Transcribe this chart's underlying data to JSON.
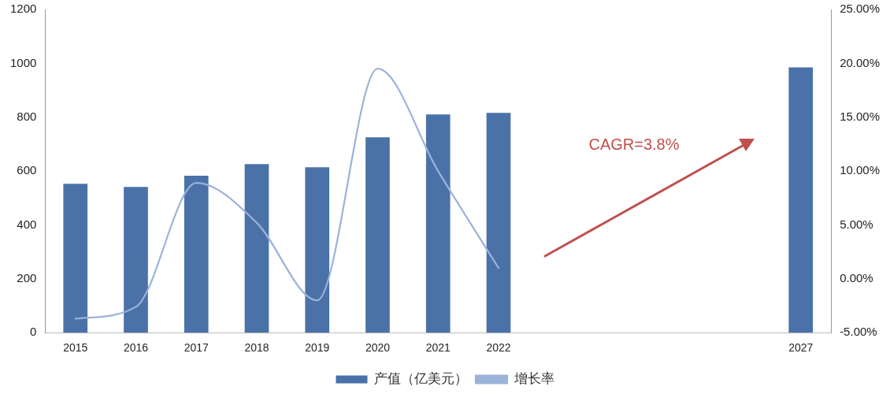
{
  "chart_data": {
    "type": "bar",
    "categories": [
      "2015",
      "2016",
      "2017",
      "2018",
      "2019",
      "2020",
      "2021",
      "2022",
      null,
      null,
      null,
      null,
      "2027"
    ],
    "series": [
      {
        "name": "产值（亿美元）",
        "color": "#4a72a8",
        "values": [
          553,
          541,
          583,
          626,
          614,
          725,
          810,
          816,
          null,
          null,
          null,
          null,
          985
        ]
      },
      {
        "name": "增长率",
        "type": "line",
        "axis": "y2",
        "color": "#9bb3d8",
        "values": [
          -3.7,
          -2.6,
          8.9,
          5.2,
          -2.0,
          19.5,
          10.0,
          1.0,
          null,
          null,
          null,
          null,
          null
        ]
      }
    ],
    "ylim": [
      0,
      1200
    ],
    "yticks": [
      0,
      200,
      400,
      600,
      800,
      1000,
      1200
    ],
    "y2lim": [
      -5,
      25
    ],
    "y2ticks": [
      {
        "value": -5,
        "label": "-5.00%"
      },
      {
        "value": 0,
        "label": "0.00%"
      },
      {
        "value": 5,
        "label": "5.00%"
      },
      {
        "value": 10,
        "label": "10.00%"
      },
      {
        "value": 15,
        "label": "15.00%"
      },
      {
        "value": 20,
        "label": "20.00%"
      },
      {
        "value": 25,
        "label": "25.00%"
      }
    ],
    "annotations": [
      "CAGR=3.8%"
    ],
    "grid": false,
    "legend": "bottom",
    "marker": "none",
    "line_style": "solid"
  }
}
